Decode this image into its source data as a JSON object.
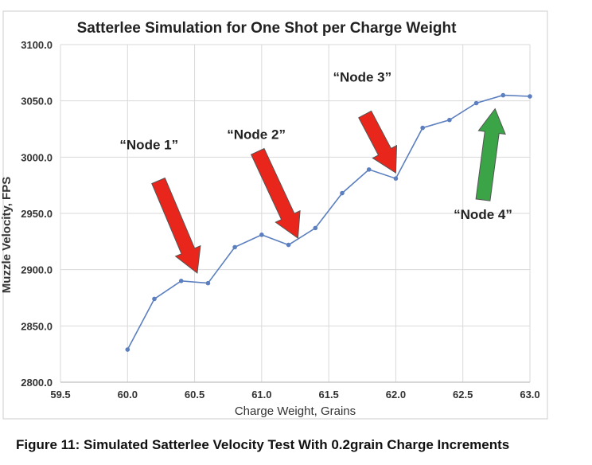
{
  "figure_caption": "Figure 11: Simulated Satterlee Velocity Test With 0.2grain Charge Increments",
  "colors": {
    "line": "#5b7fbf",
    "grid": "#d9d9d9",
    "arrow_red": "#e8261b",
    "arrow_green": "#3aa447",
    "frame": "#cccccc"
  },
  "chart_data": {
    "type": "line",
    "title": "Satterlee Simulation for One Shot per Charge Weight",
    "xlabel": "Charge Weight, Grains",
    "ylabel": "Muzzle Velocity, FPS",
    "xlim": [
      59.5,
      63.0
    ],
    "ylim": [
      2800,
      3100
    ],
    "xticks": [
      59.5,
      60.0,
      60.5,
      61.0,
      61.5,
      62.0,
      62.5,
      63.0
    ],
    "xtick_labels": [
      "59.5",
      "60.0",
      "60.5",
      "61.0",
      "61.5",
      "62.0",
      "62.5",
      "63.0"
    ],
    "yticks": [
      2800,
      2850,
      2900,
      2950,
      3000,
      3050,
      3100
    ],
    "ytick_labels": [
      "2800.0",
      "2850.0",
      "2900.0",
      "2950.0",
      "3000.0",
      "3050.0",
      "3100.0"
    ],
    "grid": true,
    "x": [
      60.0,
      60.2,
      60.4,
      60.6,
      60.8,
      61.0,
      61.2,
      61.4,
      61.6,
      61.8,
      62.0,
      62.2,
      62.4,
      62.6,
      62.8,
      63.0
    ],
    "y": [
      2829,
      2874,
      2890,
      2888,
      2920,
      2931,
      2922,
      2937,
      2968,
      2989,
      2981,
      3026,
      3033,
      3048,
      3055,
      3054
    ],
    "annotations": [
      {
        "text": "“Node 1”",
        "x": 60.4,
        "y": 2890,
        "color": "red",
        "direction": "points down-right"
      },
      {
        "text": "“Node 2”",
        "x": 61.2,
        "y": 2922,
        "color": "red",
        "direction": "points down-right"
      },
      {
        "text": "“Node 3”",
        "x": 62.0,
        "y": 2981,
        "color": "red",
        "direction": "points down-right"
      },
      {
        "text": "“Node 4”",
        "x": 62.8,
        "y": 3055,
        "color": "green",
        "direction": "points up"
      }
    ]
  }
}
